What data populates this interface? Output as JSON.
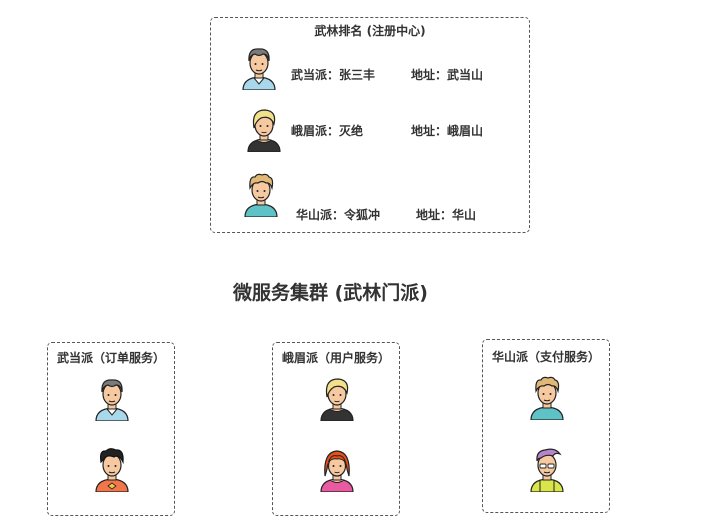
{
  "registry": {
    "title": "武林排名 (注册中心)",
    "entries": [
      {
        "sect": "武当派：张三丰",
        "address": "地址：武当山",
        "avatar": "man-gray-hair-avatar-icon"
      },
      {
        "sect": "峨眉派：灭绝",
        "address": "地址：峨眉山",
        "avatar": "woman-blonde-avatar-icon"
      },
      {
        "sect": "华山派：令狐冲",
        "address": "地址：华山",
        "avatar": "man-curly-hair-avatar-icon"
      }
    ]
  },
  "cluster_title": "微服务集群 (武林门派)",
  "services": [
    {
      "title": "武当派（订单服务）",
      "avatars": [
        "man-gray-hair-avatar-icon",
        "man-black-hair-avatar-icon"
      ]
    },
    {
      "title": "峨眉派（用户服务）",
      "avatars": [
        "woman-blonde-avatar-icon",
        "woman-red-hair-avatar-icon"
      ]
    },
    {
      "title": "华山派（支付服务）",
      "avatars": [
        "man-curly-hair-avatar-icon",
        "man-purple-hair-avatar-icon"
      ]
    }
  ],
  "colors": {
    "border": "#555555",
    "text": "#333333"
  }
}
